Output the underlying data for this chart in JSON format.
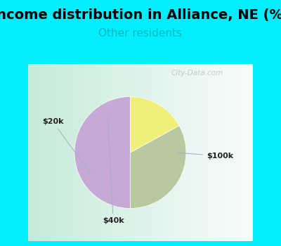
{
  "title": "Income distribution in Alliance, NE (%)",
  "subtitle": "Other residents",
  "title_color": "#000000",
  "subtitle_color": "#00bbbb",
  "bg_cyan": "#00eeff",
  "slices": [
    {
      "label": "$100k",
      "value": 50,
      "color": "#c4aad4"
    },
    {
      "label": "$20k",
      "value": 33,
      "color": "#b8c9a0"
    },
    {
      "label": "$40k",
      "value": 17,
      "color": "#eef07a"
    }
  ],
  "startangle": 90,
  "watermark": "City-Data.com",
  "title_fontsize": 14,
  "subtitle_fontsize": 11
}
